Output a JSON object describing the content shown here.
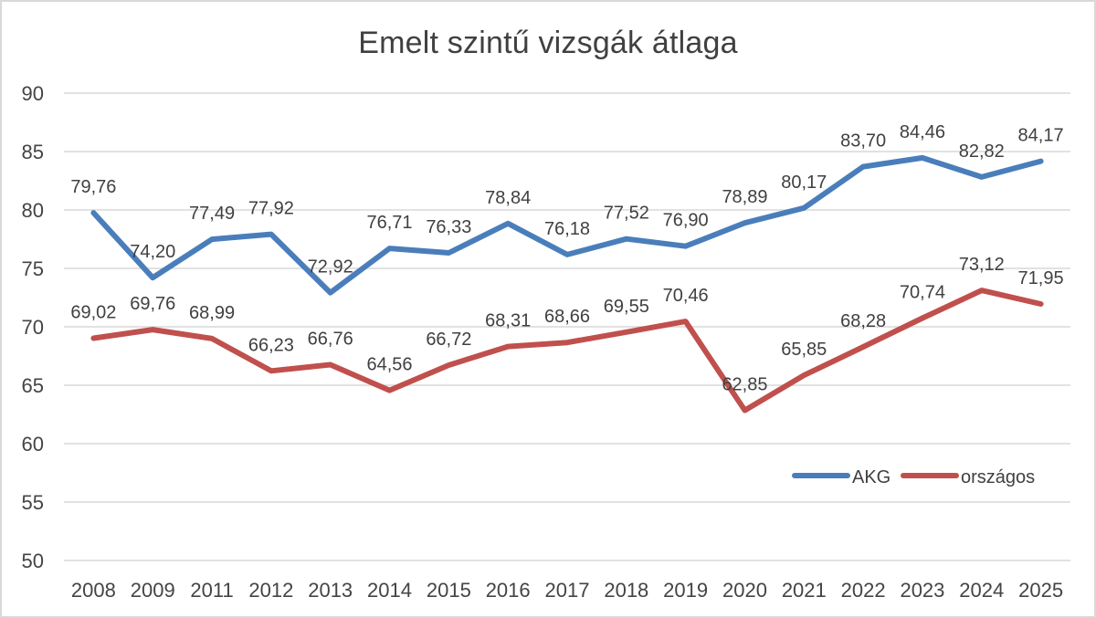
{
  "chart_data": {
    "type": "line",
    "title": "Emelt szintű vizsgák átlaga",
    "categories": [
      "2008",
      "2009",
      "2011",
      "2012",
      "2013",
      "2014",
      "2015",
      "2016",
      "2017",
      "2018",
      "2019",
      "2020",
      "2021",
      "2022",
      "2023",
      "2024",
      "2025"
    ],
    "series": [
      {
        "name": "AKG",
        "color": "#4a7ebb",
        "values": [
          79.76,
          74.2,
          77.49,
          77.92,
          72.92,
          76.71,
          76.33,
          78.84,
          76.18,
          77.52,
          76.9,
          78.89,
          80.17,
          83.7,
          84.46,
          82.82,
          84.17
        ],
        "labels": [
          "79,76",
          "74,20",
          "77,49",
          "77,92",
          "72,92",
          "76,71",
          "76,33",
          "78,84",
          "76,18",
          "77,52",
          "76,90",
          "78,89",
          "80,17",
          "83,70",
          "84,46",
          "82,82",
          "84,17"
        ]
      },
      {
        "name": "országos",
        "color": "#c0504d",
        "values": [
          69.02,
          69.76,
          68.99,
          66.23,
          66.76,
          64.56,
          66.72,
          68.31,
          68.66,
          69.55,
          70.46,
          62.85,
          65.85,
          68.28,
          70.74,
          73.12,
          71.95
        ],
        "labels": [
          "69,02",
          "69,76",
          "68,99",
          "66,23",
          "66,76",
          "64,56",
          "66,72",
          "68,31",
          "68,66",
          "69,55",
          "70,46",
          "62,85",
          "65,85",
          "68,28",
          "70,74",
          "73,12",
          "71,95"
        ]
      }
    ],
    "ylim": [
      50,
      90
    ],
    "yticks": [
      "90",
      "85",
      "80",
      "75",
      "70",
      "65",
      "60",
      "55",
      "50"
    ],
    "ytick_values": [
      90,
      85,
      80,
      75,
      70,
      65,
      60,
      55,
      50
    ],
    "grid": true,
    "legend": [
      "AKG",
      "országos"
    ],
    "legend_position": "inside-right",
    "colors": {
      "grid": "#d9d9d9",
      "border": "#d9d9d9",
      "axis_text": "#444444",
      "data_label_text": "#404040",
      "title_text": "#404040"
    }
  }
}
